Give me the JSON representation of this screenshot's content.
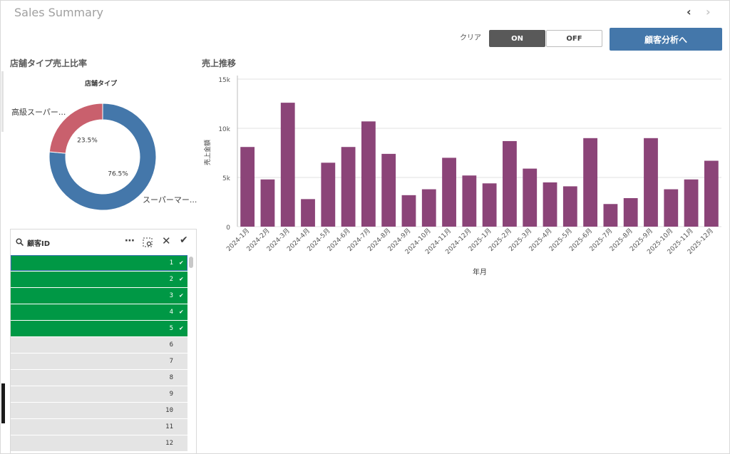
{
  "app": {
    "title": "Sales Summary"
  },
  "nav": {
    "prev_icon": "chevron-left-icon",
    "next_icon": "chevron-right-icon"
  },
  "toolbar": {
    "clear_label": "クリア",
    "on_label": "ON",
    "off_label": "OFF",
    "customer_button": "顧客分析へ"
  },
  "colors": {
    "accent": "#4477aa",
    "bar": "#8b4478",
    "pie_super": "#4477aa",
    "pie_premium": "#c9606d",
    "selected": "#009845",
    "on_button": "#595959"
  },
  "pie": {
    "section_title": "店舗タイプ売上比率",
    "subtitle": "店舗タイプ",
    "slices": [
      {
        "label": "スーパーマー...",
        "pct": 76.5,
        "pct_label": "76.5%"
      },
      {
        "label": "高級スーパー...",
        "pct": 23.5,
        "pct_label": "23.5%"
      }
    ]
  },
  "bar": {
    "section_title": "売上推移",
    "xlabel": "年月",
    "ylabel": "売上金額",
    "yticks": [
      "0",
      "5k",
      "10k",
      "15k"
    ]
  },
  "chart_data": {
    "type": "bar",
    "title": "売上推移",
    "xlabel": "年月",
    "ylabel": "売上金額",
    "ylim": [
      0,
      15000
    ],
    "categories": [
      "2024-1月",
      "2024-2月",
      "2024-3月",
      "2024-4月",
      "2024-5月",
      "2024-6月",
      "2024-7月",
      "2024-8月",
      "2024-9月",
      "2024-10月",
      "2024-11月",
      "2024-12月",
      "2025-1月",
      "2025-2月",
      "2025-3月",
      "2025-4月",
      "2025-5月",
      "2025-6月",
      "2025-7月",
      "2025-8月",
      "2025-9月",
      "2025-10月",
      "2025-11月",
      "2025-12月"
    ],
    "values": [
      8100,
      4800,
      12600,
      2800,
      6500,
      8100,
      10700,
      7400,
      3200,
      3800,
      7000,
      5200,
      4400,
      8700,
      5900,
      4500,
      4100,
      9000,
      2300,
      2900,
      9000,
      3800,
      4800,
      6700
    ]
  },
  "listbox": {
    "title": "顧客ID",
    "search_icon": "search-icon",
    "rows": [
      {
        "label": "1",
        "selected": true
      },
      {
        "label": "2",
        "selected": true
      },
      {
        "label": "3",
        "selected": true
      },
      {
        "label": "4",
        "selected": true
      },
      {
        "label": "5",
        "selected": true
      },
      {
        "label": "6",
        "selected": false
      },
      {
        "label": "7",
        "selected": false
      },
      {
        "label": "8",
        "selected": false
      },
      {
        "label": "9",
        "selected": false
      },
      {
        "label": "10",
        "selected": false
      },
      {
        "label": "11",
        "selected": false
      },
      {
        "label": "12",
        "selected": false
      }
    ]
  }
}
